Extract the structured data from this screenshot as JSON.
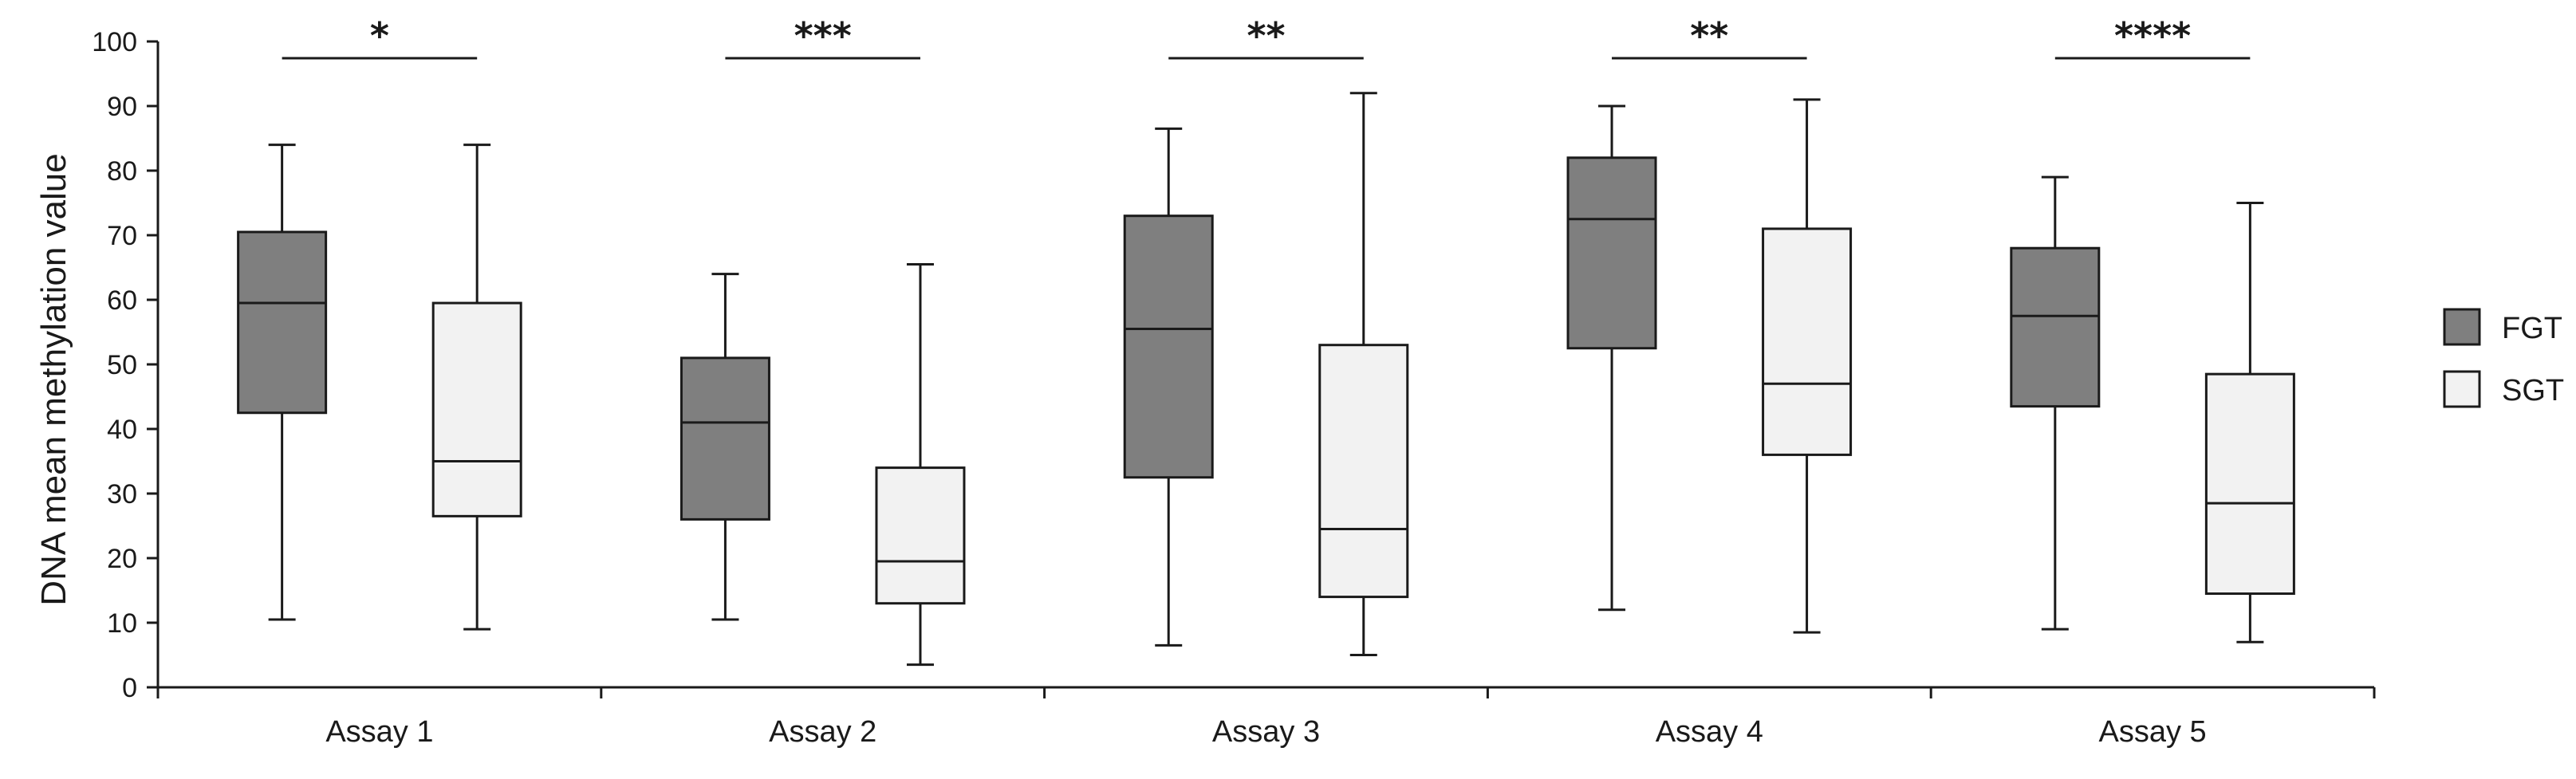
{
  "chart_data": {
    "type": "boxplot",
    "title": "",
    "xlabel": "",
    "ylabel": "DNA mean methylation value",
    "ylim": [
      0,
      100
    ],
    "yticks": [
      0,
      10,
      20,
      30,
      40,
      50,
      60,
      70,
      80,
      90,
      100
    ],
    "grid": false,
    "legend_position": "right",
    "categories": [
      "Assay 1",
      "Assay 2",
      "Assay 3",
      "Assay 4",
      "Assay 5"
    ],
    "series": [
      {
        "name": "FGT",
        "color": "#7f7f7f",
        "boxes": [
          {
            "min": 10.5,
            "q1": 42.5,
            "median": 59.5,
            "q3": 70.5,
            "max": 84.0
          },
          {
            "min": 10.5,
            "q1": 26.0,
            "median": 41.0,
            "q3": 51.0,
            "max": 64.0
          },
          {
            "min": 6.5,
            "q1": 32.5,
            "median": 55.5,
            "q3": 73.0,
            "max": 86.5
          },
          {
            "min": 12.0,
            "q1": 52.5,
            "median": 72.5,
            "q3": 82.0,
            "max": 90.0
          },
          {
            "min": 9.0,
            "q1": 43.5,
            "median": 57.5,
            "q3": 68.0,
            "max": 79.0
          }
        ]
      },
      {
        "name": "SGT",
        "color": "#f2f2f2",
        "boxes": [
          {
            "min": 9.0,
            "q1": 26.5,
            "median": 35.0,
            "q3": 59.5,
            "max": 84.0
          },
          {
            "min": 3.5,
            "q1": 13.0,
            "median": 19.5,
            "q3": 34.0,
            "max": 65.5
          },
          {
            "min": 5.0,
            "q1": 14.0,
            "median": 24.5,
            "q3": 53.0,
            "max": 92.0
          },
          {
            "min": 8.5,
            "q1": 36.0,
            "median": 47.0,
            "q3": 71.0,
            "max": 91.0
          },
          {
            "min": 7.0,
            "q1": 14.5,
            "median": 28.5,
            "q3": 48.5,
            "max": 75.0
          }
        ]
      }
    ],
    "significance": [
      "*",
      "***",
      "**",
      "**",
      "****"
    ]
  }
}
